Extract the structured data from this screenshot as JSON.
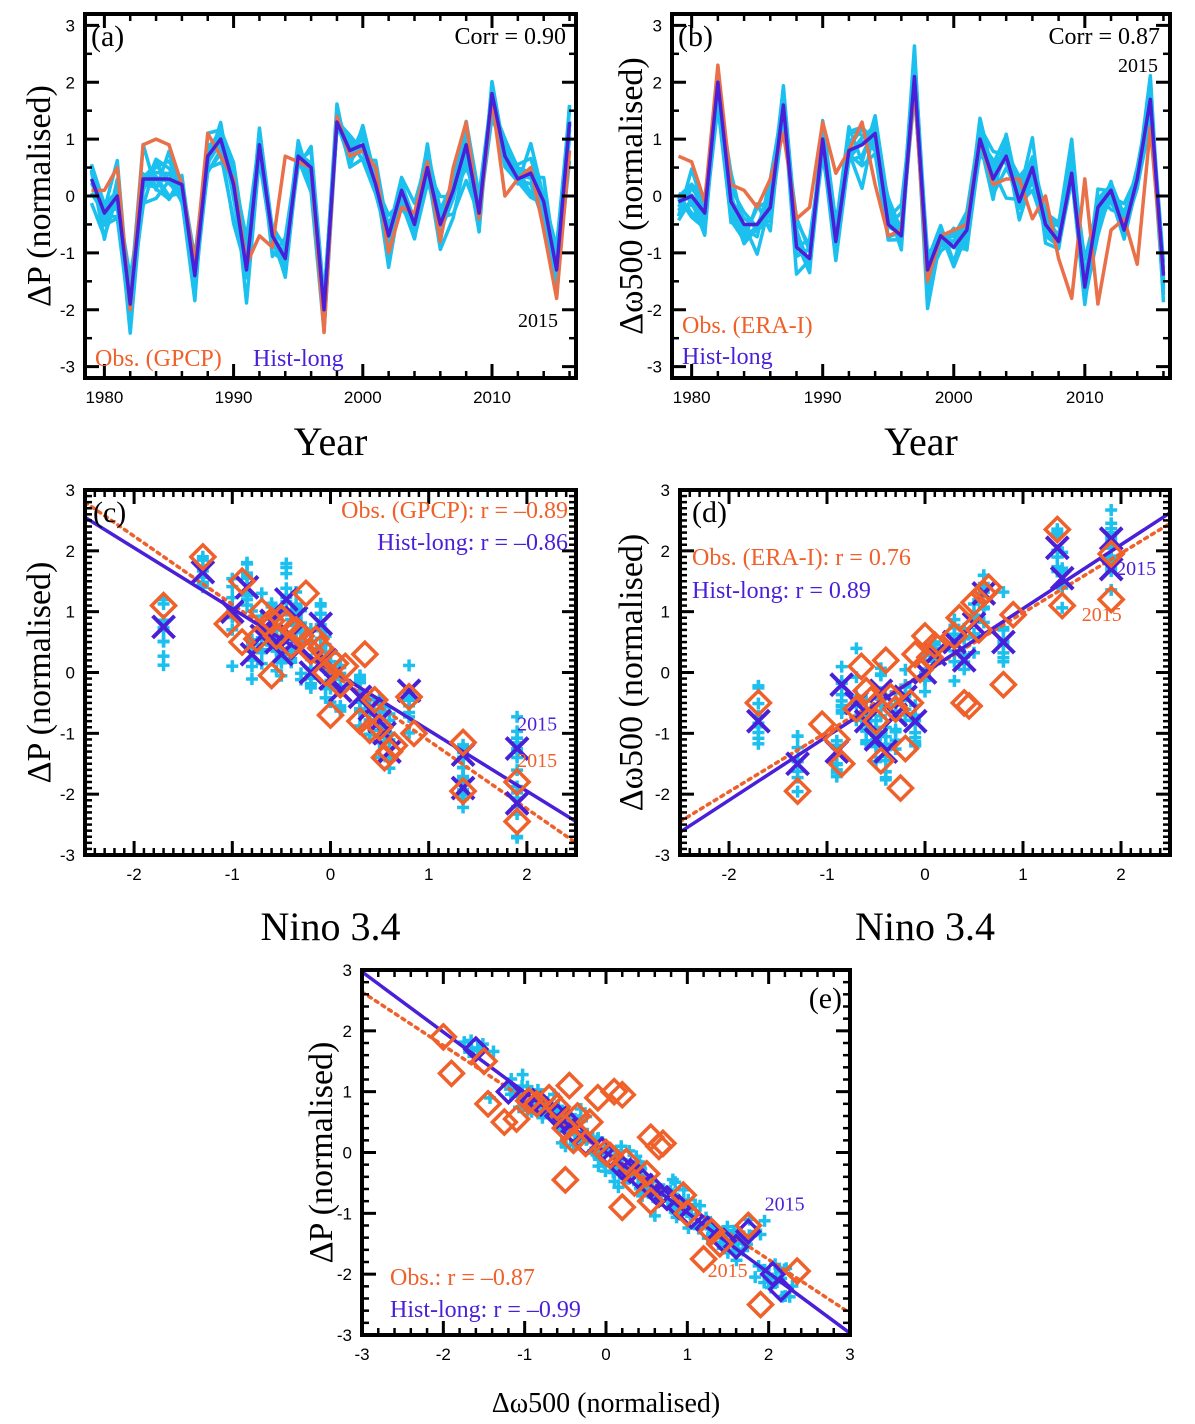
{
  "colors": {
    "obs": "#f0602a",
    "hist": "#4a1fd8",
    "members": "#1cc0ee",
    "obs_line": "#e97048"
  },
  "chart_data": [
    {
      "id": "a",
      "type": "line",
      "panel_label": "(a)",
      "annotation": "Corr = 0.90",
      "year_label": "2015",
      "xlabel": "Year",
      "ylabel": "ΔP (normalised)",
      "xlim": [
        1978.5,
        2016.5
      ],
      "ylim": [
        -3.2,
        3.2
      ],
      "xticks": [
        1980,
        1990,
        2000,
        2010
      ],
      "yticks": [
        -3,
        -2,
        -1,
        0,
        1,
        2,
        3
      ],
      "legend": [
        {
          "text": "Obs. (GPCP)",
          "series": "obs"
        },
        {
          "text": "Hist-long",
          "series": "hist"
        }
      ],
      "x": [
        1979,
        1980,
        1981,
        1982,
        1983,
        1984,
        1985,
        1986,
        1987,
        1988,
        1989,
        1990,
        1991,
        1992,
        1993,
        1994,
        1995,
        1996,
        1997,
        1998,
        1999,
        2000,
        2001,
        2002,
        2003,
        2004,
        2005,
        2006,
        2007,
        2008,
        2009,
        2010,
        2011,
        2012,
        2013,
        2014,
        2015,
        2016
      ],
      "series": [
        {
          "key": "obs",
          "values": [
            0.1,
            0.1,
            0.5,
            -2.0,
            0.9,
            1.0,
            0.9,
            0.2,
            -1.2,
            1.1,
            0.7,
            0.3,
            -1.2,
            -0.7,
            -0.9,
            0.7,
            0.6,
            0.5,
            -2.4,
            1.4,
            0.7,
            0.8,
            0.5,
            -1.0,
            -0.2,
            -0.3,
            0.6,
            -0.8,
            0.5,
            1.3,
            -0.4,
            1.7,
            0.0,
            0.3,
            0.5,
            -0.6,
            -1.8,
            0.8
          ]
        },
        {
          "key": "hist",
          "values": [
            0.3,
            -0.3,
            0.0,
            -1.9,
            0.3,
            0.3,
            0.3,
            0.2,
            -1.4,
            0.7,
            1.0,
            0.2,
            -1.3,
            0.9,
            -0.7,
            -1.1,
            0.7,
            0.5,
            -2.0,
            1.3,
            0.8,
            0.9,
            0.2,
            -0.7,
            0.1,
            -0.5,
            0.5,
            -0.5,
            0.1,
            0.9,
            -0.3,
            1.8,
            0.7,
            0.3,
            0.4,
            -0.1,
            -1.3,
            1.3
          ]
        }
      ]
    },
    {
      "id": "b",
      "type": "line",
      "panel_label": "(b)",
      "annotation": "Corr = 0.87",
      "year_label": "2015",
      "xlabel": "Year",
      "ylabel": "Δω500 (normalised)",
      "xlim": [
        1978.5,
        2016.5
      ],
      "ylim": [
        -3.2,
        3.2
      ],
      "xticks": [
        1980,
        1990,
        2000,
        2010
      ],
      "yticks": [
        -3,
        -2,
        -1,
        0,
        1,
        2,
        3
      ],
      "legend": [
        {
          "text": "Obs. (ERA-I)",
          "series": "obs"
        },
        {
          "text": "Hist-long",
          "series": "hist"
        }
      ],
      "x": [
        1979,
        1980,
        1981,
        1982,
        1983,
        1984,
        1985,
        1986,
        1987,
        1988,
        1989,
        1990,
        1991,
        1992,
        1993,
        1994,
        1995,
        1996,
        1997,
        1998,
        1999,
        2000,
        2001,
        2002,
        2003,
        2004,
        2005,
        2006,
        2007,
        2008,
        2009,
        2010,
        2011,
        2012,
        2013,
        2014,
        2015,
        2016
      ],
      "series": [
        {
          "key": "obs",
          "values": [
            0.7,
            0.6,
            -0.1,
            2.3,
            0.2,
            0.1,
            -0.2,
            0.3,
            1.1,
            -0.4,
            -0.2,
            1.3,
            0.4,
            0.8,
            1.3,
            0.2,
            -0.7,
            -0.6,
            1.9,
            -1.5,
            -0.7,
            -0.6,
            -0.5,
            1.0,
            0.2,
            0.3,
            0.3,
            -0.4,
            0.0,
            -1.1,
            -1.8,
            0.3,
            -1.9,
            -0.6,
            -0.4,
            -1.2,
            1.2,
            -1.4
          ]
        },
        {
          "key": "hist",
          "values": [
            -0.1,
            0.0,
            -0.3,
            2.0,
            -0.1,
            -0.5,
            -0.5,
            -0.2,
            1.6,
            -0.9,
            -1.1,
            1.0,
            -0.8,
            0.8,
            0.9,
            1.1,
            -0.5,
            -0.7,
            2.1,
            -1.3,
            -0.7,
            -0.9,
            -0.6,
            1.0,
            0.3,
            0.7,
            -0.1,
            0.5,
            -0.5,
            -0.8,
            0.4,
            -1.6,
            -0.2,
            0.1,
            -0.6,
            0.3,
            1.7,
            -1.4
          ]
        }
      ]
    },
    {
      "id": "c",
      "type": "scatter",
      "panel_label": "(c)",
      "xlabel": "Nino 3.4",
      "ylabel": "ΔP (normalised)",
      "xlim": [
        -2.5,
        2.5
      ],
      "ylim": [
        -3.0,
        3.0
      ],
      "xticks": [
        -2,
        -1,
        0,
        1,
        2
      ],
      "yticks": [
        -3,
        -2,
        -1,
        0,
        1,
        2,
        3
      ],
      "legend": [
        {
          "text": "Obs. (GPCP): r = –0.89",
          "series": "obs"
        },
        {
          "text": "Hist-long: r = –0.86",
          "series": "hist"
        }
      ],
      "labels_2015": [
        {
          "text": "2015",
          "series": "hist",
          "x": 1.9,
          "y": -0.95
        },
        {
          "text": "2015",
          "series": "obs",
          "x": 1.9,
          "y": -1.55
        }
      ],
      "fit_obs": {
        "slope": -1.12,
        "intercept": 0.0
      },
      "fit_hist": {
        "slope": -1.0,
        "intercept": 0.05
      },
      "obs_points": [
        [
          -1.7,
          1.1
        ],
        [
          -1.3,
          1.9
        ],
        [
          -1.05,
          0.8
        ],
        [
          -0.9,
          0.5
        ],
        [
          -0.9,
          1.5
        ],
        [
          -0.75,
          0.55
        ],
        [
          -0.7,
          1.0
        ],
        [
          -0.6,
          0.85
        ],
        [
          -0.6,
          -0.05
        ],
        [
          -0.55,
          0.6
        ],
        [
          -0.5,
          0.9
        ],
        [
          -0.45,
          0.8
        ],
        [
          -0.4,
          0.45
        ],
        [
          -0.35,
          0.7
        ],
        [
          -0.3,
          0.6
        ],
        [
          -0.25,
          1.3
        ],
        [
          -0.2,
          0.35
        ],
        [
          -0.15,
          0.55
        ],
        [
          -0.1,
          0.4
        ],
        [
          -0.05,
          0.0
        ],
        [
          0.0,
          -0.7
        ],
        [
          0.05,
          0.15
        ],
        [
          0.1,
          -0.2
        ],
        [
          0.15,
          0.1
        ],
        [
          0.3,
          -0.8
        ],
        [
          0.35,
          0.3
        ],
        [
          0.4,
          -0.95
        ],
        [
          0.45,
          -0.45
        ],
        [
          0.5,
          -0.9
        ],
        [
          0.55,
          -1.4
        ],
        [
          0.6,
          -1.3
        ],
        [
          0.65,
          -1.2
        ],
        [
          0.8,
          -0.4
        ],
        [
          0.85,
          -1.0
        ],
        [
          1.35,
          -1.15
        ],
        [
          1.35,
          -1.95
        ],
        [
          1.9,
          -1.8
        ],
        [
          1.9,
          -2.45
        ]
      ],
      "hist_points": [
        [
          -1.7,
          0.75
        ],
        [
          -1.3,
          1.65
        ],
        [
          -1.0,
          1.0
        ],
        [
          -0.85,
          1.4
        ],
        [
          -0.8,
          0.3
        ],
        [
          -0.7,
          0.6
        ],
        [
          -0.6,
          0.85
        ],
        [
          -0.55,
          0.5
        ],
        [
          -0.5,
          0.3
        ],
        [
          -0.45,
          1.2
        ],
        [
          -0.4,
          0.6
        ],
        [
          -0.35,
          0.9
        ],
        [
          -0.3,
          0.4
        ],
        [
          -0.2,
          0.0
        ],
        [
          -0.1,
          0.8
        ],
        [
          -0.05,
          0.2
        ],
        [
          0.0,
          -0.1
        ],
        [
          0.1,
          -0.3
        ],
        [
          0.3,
          -0.4
        ],
        [
          0.4,
          -0.6
        ],
        [
          0.5,
          -0.8
        ],
        [
          0.55,
          -1.0
        ],
        [
          0.6,
          -1.3
        ],
        [
          0.8,
          -0.3
        ],
        [
          1.35,
          -1.35
        ],
        [
          1.35,
          -1.9
        ],
        [
          1.9,
          -1.25
        ],
        [
          1.9,
          -2.15
        ]
      ]
    },
    {
      "id": "d",
      "type": "scatter",
      "panel_label": "(d)",
      "xlabel": "Nino 3.4",
      "ylabel": "Δω500 (normalised)",
      "xlim": [
        -2.5,
        2.5
      ],
      "ylim": [
        -3.0,
        3.0
      ],
      "xticks": [
        -2,
        -1,
        0,
        1,
        2
      ],
      "yticks": [
        -3,
        -2,
        -1,
        0,
        1,
        2,
        3
      ],
      "legend": [
        {
          "text": "Obs. (ERA-I): r = 0.76",
          "series": "obs"
        },
        {
          "text": "Hist-long: r = 0.89",
          "series": "hist"
        }
      ],
      "labels_2015": [
        {
          "text": "2015",
          "series": "hist",
          "x": 1.95,
          "y": 1.6
        },
        {
          "text": "2015",
          "series": "obs",
          "x": 1.6,
          "y": 0.85
        }
      ],
      "fit_obs": {
        "slope": 0.98,
        "intercept": 0.0
      },
      "fit_hist": {
        "slope": 1.05,
        "intercept": 0.0
      },
      "obs_points": [
        [
          -1.7,
          -0.5
        ],
        [
          -1.3,
          -1.95
        ],
        [
          -1.05,
          -0.85
        ],
        [
          -0.9,
          -1.1
        ],
        [
          -0.85,
          -1.5
        ],
        [
          -0.7,
          -0.6
        ],
        [
          -0.65,
          0.1
        ],
        [
          -0.6,
          -0.3
        ],
        [
          -0.55,
          -0.45
        ],
        [
          -0.5,
          -0.8
        ],
        [
          -0.45,
          -1.45
        ],
        [
          -0.4,
          0.2
        ],
        [
          -0.35,
          -0.4
        ],
        [
          -0.3,
          -0.6
        ],
        [
          -0.25,
          -1.9
        ],
        [
          -0.2,
          -1.25
        ],
        [
          -0.15,
          -0.5
        ],
        [
          -0.1,
          0.3
        ],
        [
          -0.05,
          0.05
        ],
        [
          0.0,
          0.6
        ],
        [
          0.05,
          0.25
        ],
        [
          0.1,
          0.45
        ],
        [
          0.3,
          0.6
        ],
        [
          0.35,
          0.9
        ],
        [
          0.4,
          -0.5
        ],
        [
          0.45,
          -0.55
        ],
        [
          0.5,
          1.15
        ],
        [
          0.55,
          0.7
        ],
        [
          0.6,
          1.3
        ],
        [
          0.65,
          1.4
        ],
        [
          0.8,
          -0.2
        ],
        [
          0.9,
          0.95
        ],
        [
          1.35,
          2.35
        ],
        [
          1.4,
          1.1
        ],
        [
          1.9,
          1.95
        ],
        [
          1.9,
          1.2
        ]
      ],
      "hist_points": [
        [
          -1.7,
          -0.8
        ],
        [
          -1.3,
          -1.5
        ],
        [
          -0.9,
          -1.3
        ],
        [
          -0.85,
          -0.2
        ],
        [
          -0.7,
          -0.5
        ],
        [
          -0.6,
          -0.8
        ],
        [
          -0.5,
          -1.1
        ],
        [
          -0.45,
          -0.3
        ],
        [
          -0.4,
          -1.3
        ],
        [
          -0.3,
          -0.7
        ],
        [
          -0.2,
          -0.4
        ],
        [
          -0.1,
          -0.8
        ],
        [
          0.0,
          0.0
        ],
        [
          0.1,
          0.3
        ],
        [
          0.3,
          0.5
        ],
        [
          0.4,
          0.2
        ],
        [
          0.5,
          0.8
        ],
        [
          0.6,
          1.3
        ],
        [
          0.8,
          0.5
        ],
        [
          1.35,
          2.05
        ],
        [
          1.4,
          1.55
        ],
        [
          1.9,
          2.2
        ],
        [
          1.9,
          1.7
        ]
      ]
    },
    {
      "id": "e",
      "type": "scatter",
      "panel_label": "(e)",
      "xlabel": "Δω500 (normalised)",
      "ylabel": "ΔP (normalised)",
      "xlim": [
        -3.0,
        3.0
      ],
      "ylim": [
        -3.0,
        3.0
      ],
      "xticks": [
        -3,
        -2,
        -1,
        0,
        1,
        2,
        3
      ],
      "yticks": [
        -3,
        -2,
        -1,
        0,
        1,
        2,
        3
      ],
      "legend": [
        {
          "text": "Obs.: r = –0.87",
          "series": "obs"
        },
        {
          "text": "Hist-long: r = –0.99",
          "series": "hist"
        }
      ],
      "labels_2015": [
        {
          "text": "2015",
          "series": "hist",
          "x": 1.95,
          "y": -0.95
        },
        {
          "text": "2015",
          "series": "obs",
          "x": 1.25,
          "y": -2.05
        }
      ],
      "fit_obs": {
        "slope": -0.88,
        "intercept": 0.0
      },
      "fit_hist": {
        "slope": -0.99,
        "intercept": 0.0
      },
      "obs_points": [
        [
          -2.0,
          1.9
        ],
        [
          -1.9,
          1.3
        ],
        [
          -1.5,
          1.5
        ],
        [
          -1.45,
          0.8
        ],
        [
          -1.25,
          0.5
        ],
        [
          -1.1,
          0.55
        ],
        [
          -0.85,
          0.8
        ],
        [
          -0.6,
          0.75
        ],
        [
          -0.5,
          0.4
        ],
        [
          -0.45,
          1.1
        ],
        [
          -0.4,
          0.2
        ],
        [
          -0.5,
          -0.45
        ],
        [
          -0.35,
          0.6
        ],
        [
          -0.25,
          0.15
        ],
        [
          -0.2,
          0.5
        ],
        [
          -0.1,
          0.9
        ],
        [
          0.0,
          0.0
        ],
        [
          0.1,
          1.0
        ],
        [
          0.2,
          0.95
        ],
        [
          0.25,
          -0.15
        ],
        [
          0.2,
          -0.9
        ],
        [
          0.35,
          -0.5
        ],
        [
          0.5,
          -0.35
        ],
        [
          0.55,
          0.25
        ],
        [
          0.65,
          0.1
        ],
        [
          0.7,
          0.15
        ],
        [
          1.0,
          -1.0
        ],
        [
          1.2,
          -1.75
        ],
        [
          1.3,
          -1.3
        ],
        [
          1.75,
          -1.2
        ],
        [
          1.9,
          -2.5
        ],
        [
          2.35,
          -1.95
        ],
        [
          0.55,
          -0.8
        ],
        [
          -0.7,
          0.9
        ],
        [
          1.4,
          -1.5
        ],
        [
          0.95,
          -0.7
        ],
        [
          -0.95,
          0.85
        ],
        [
          0.05,
          -0.05
        ]
      ],
      "hist_points": [
        [
          -1.6,
          1.7
        ],
        [
          -1.2,
          1.0
        ],
        [
          -0.8,
          0.8
        ],
        [
          -0.6,
          0.6
        ],
        [
          -0.4,
          0.35
        ],
        [
          -0.25,
          0.15
        ],
        [
          -0.05,
          0.05
        ],
        [
          0.05,
          -0.05
        ],
        [
          0.2,
          -0.25
        ],
        [
          0.4,
          -0.4
        ],
        [
          0.55,
          -0.55
        ],
        [
          0.75,
          -0.75
        ],
        [
          0.9,
          -0.9
        ],
        [
          1.05,
          -1.05
        ],
        [
          1.25,
          -1.25
        ],
        [
          1.45,
          -1.45
        ],
        [
          1.6,
          -1.55
        ],
        [
          1.75,
          -1.3
        ],
        [
          2.05,
          -2.0
        ],
        [
          2.15,
          -2.25
        ],
        [
          -0.9,
          0.85
        ],
        [
          -0.5,
          0.55
        ],
        [
          0.3,
          -0.3
        ],
        [
          0.65,
          -0.7
        ]
      ]
    }
  ]
}
